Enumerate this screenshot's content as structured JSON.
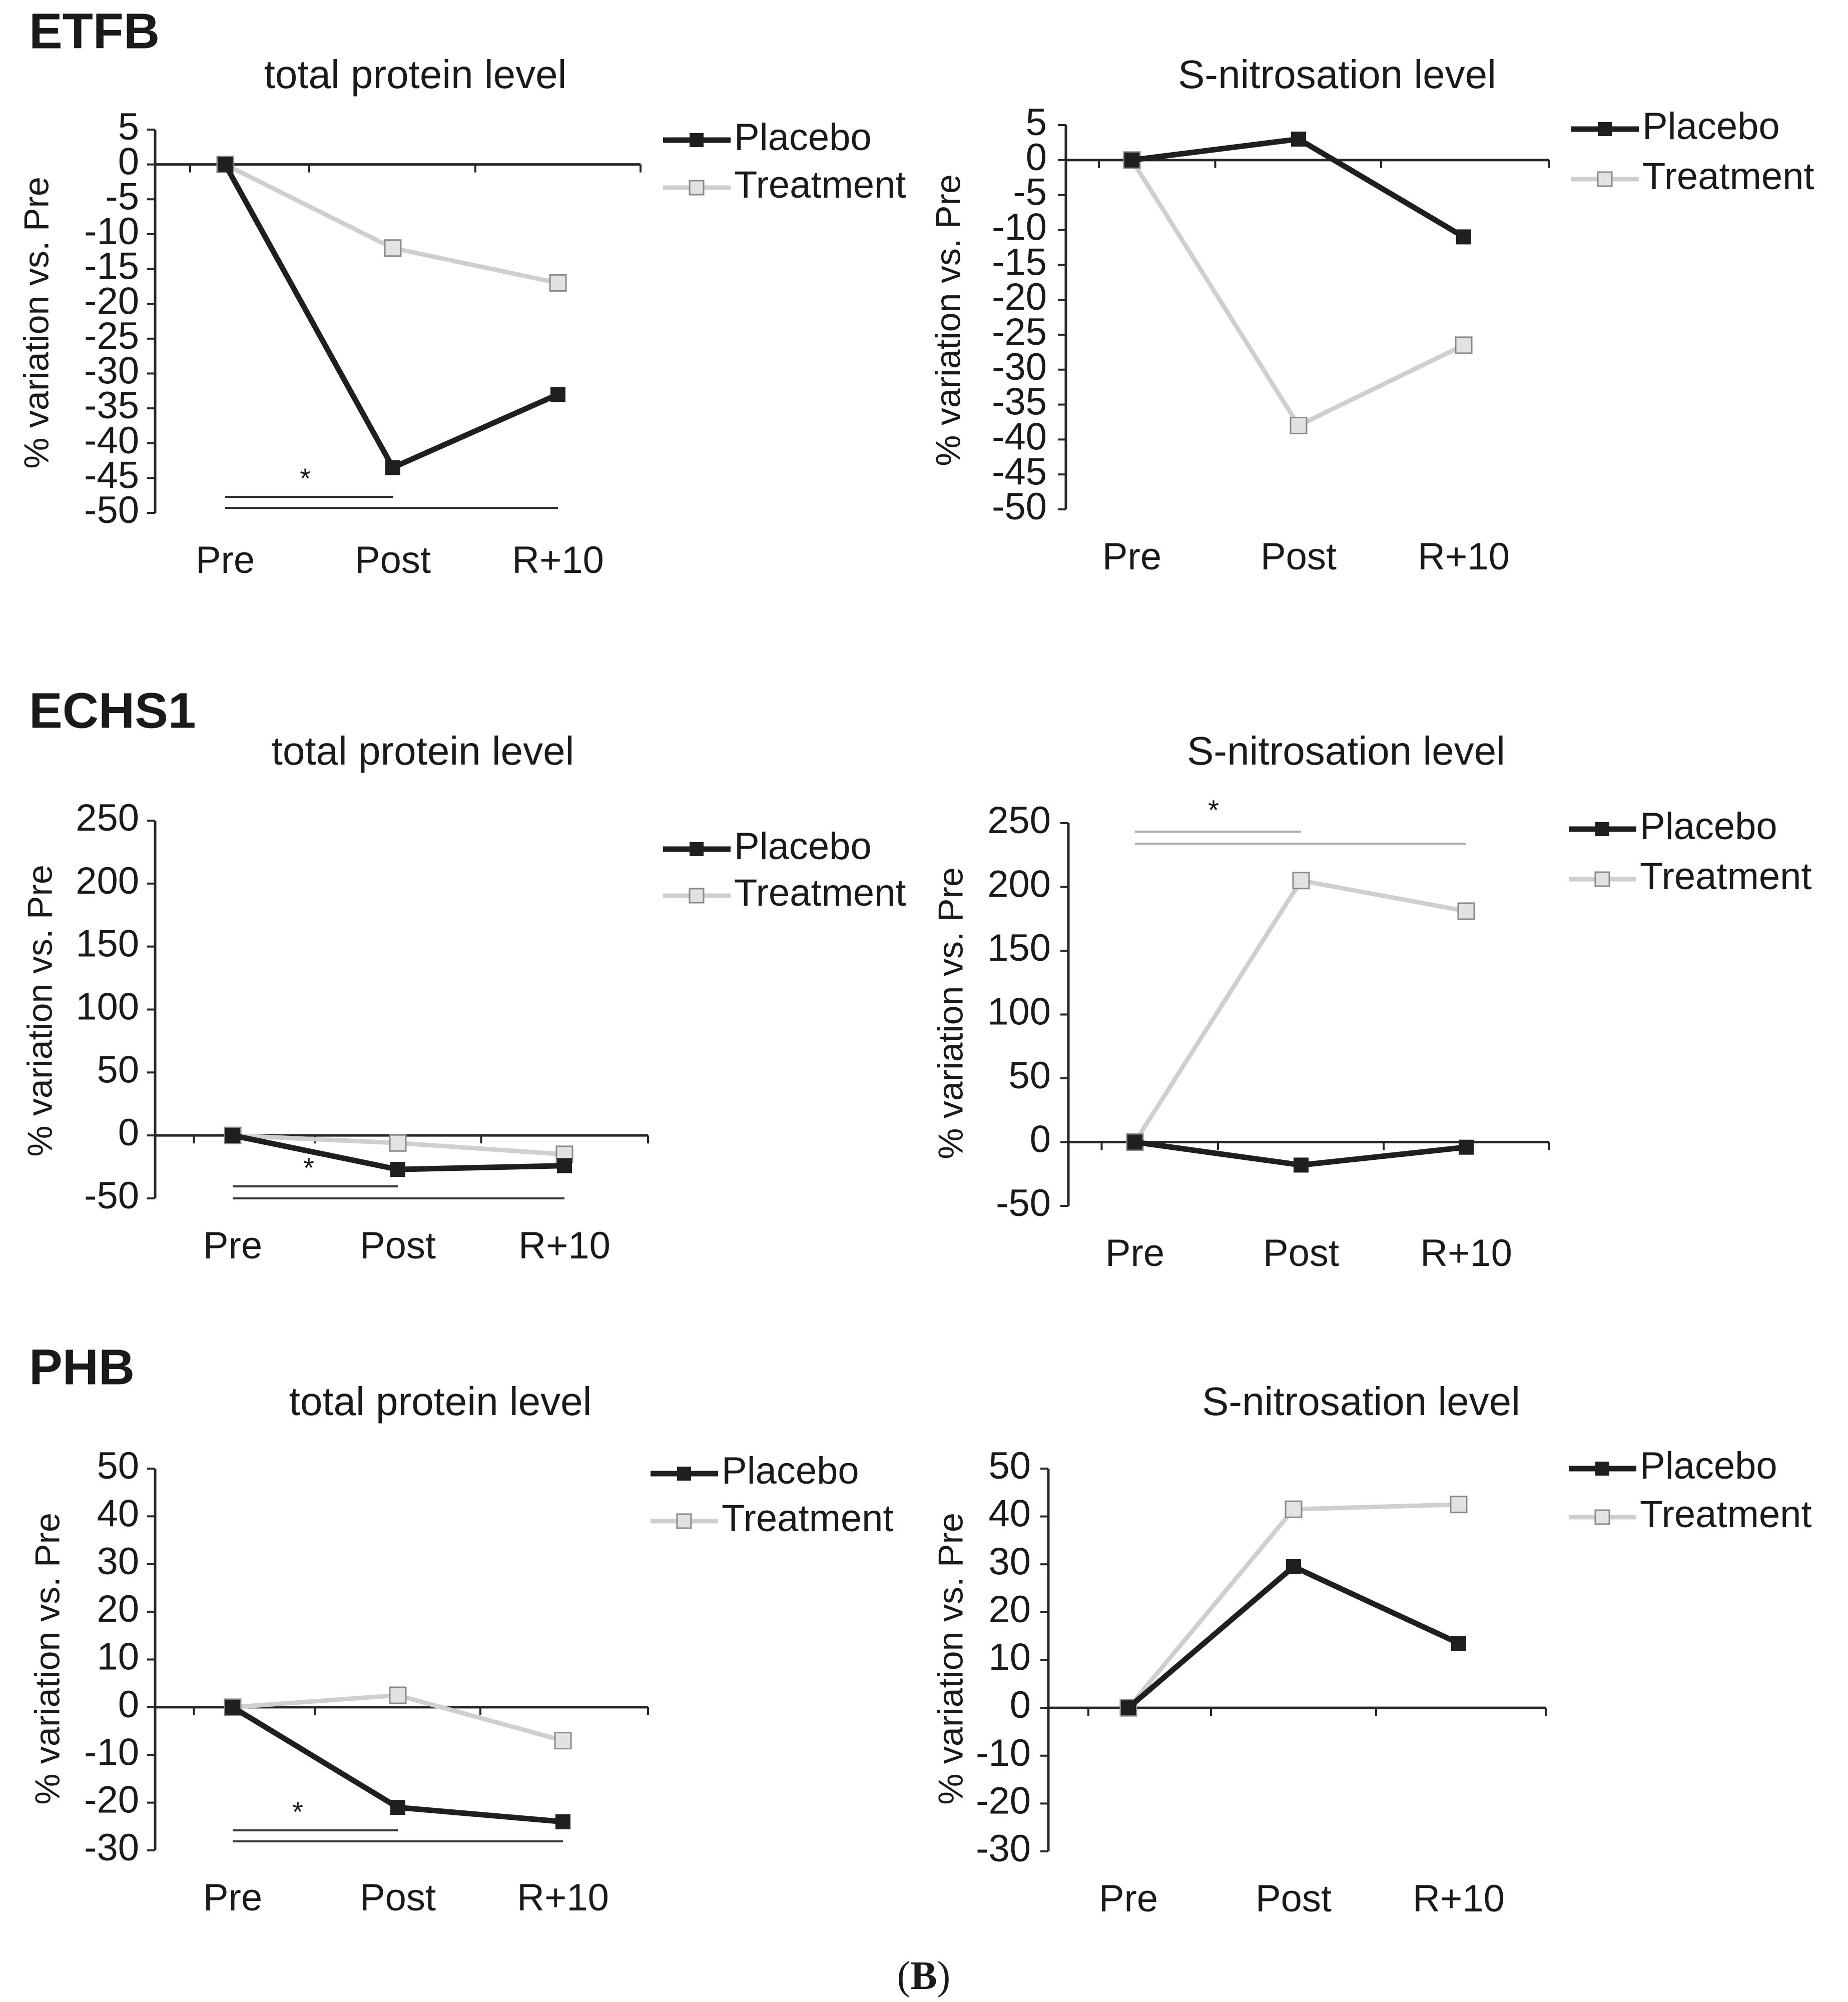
{
  "figure": {
    "caption_open": "(",
    "caption_letter": "B",
    "caption_close": ")"
  },
  "colors": {
    "placebo": "#1f1f1f",
    "treatment": "#cfcfcf",
    "treatment_marker_fill": "#e2e2e2",
    "axis": "#262626",
    "significance_line_dark": "#333333",
    "significance_line_light": "#aaaaaa"
  },
  "legend": {
    "placebo": "Placebo",
    "treatment": "Treatment"
  },
  "chart_data": [
    {
      "id": "etfb-total",
      "protein": "ETFB",
      "type": "line",
      "title": "total protein level",
      "ylabel": "% variation vs. Pre",
      "xlabel": "",
      "categories": [
        "Pre",
        "Post",
        "R+10"
      ],
      "ylim": [
        -50,
        5
      ],
      "yticks": [
        5,
        0,
        -5,
        -10,
        -15,
        -20,
        -25,
        -30,
        -35,
        -40,
        -45,
        -50
      ],
      "series": [
        {
          "name": "Placebo",
          "values": [
            0,
            -43.5,
            -33
          ]
        },
        {
          "name": "Treatment",
          "values": [
            0,
            -12,
            -17
          ]
        }
      ],
      "significance": {
        "label": "*",
        "color": "dark",
        "spans": [
          [
            0,
            1
          ],
          [
            0,
            2
          ]
        ]
      }
    },
    {
      "id": "etfb-snitro",
      "protein": "",
      "type": "line",
      "title": "S-nitrosation level",
      "ylabel": "% variation vs. Pre",
      "xlabel": "",
      "categories": [
        "Pre",
        "Post",
        "R+10"
      ],
      "ylim": [
        -50,
        5
      ],
      "yticks": [
        5,
        0,
        -5,
        -10,
        -15,
        -20,
        -25,
        -30,
        -35,
        -40,
        -45,
        -50
      ],
      "series": [
        {
          "name": "Placebo",
          "values": [
            0,
            3,
            -11
          ]
        },
        {
          "name": "Treatment",
          "values": [
            0,
            -38,
            -26.5
          ]
        }
      ],
      "significance": null
    },
    {
      "id": "echs1-total",
      "protein": "ECHS1",
      "type": "line",
      "title": "total protein level",
      "ylabel": "% variation vs. Pre",
      "xlabel": "",
      "categories": [
        "Pre",
        "Post",
        "R+10"
      ],
      "ylim": [
        -50,
        250
      ],
      "yticks": [
        250,
        200,
        150,
        100,
        50,
        0,
        -50
      ],
      "series": [
        {
          "name": "Placebo",
          "values": [
            0,
            -27,
            -24
          ]
        },
        {
          "name": "Treatment",
          "values": [
            0,
            -6,
            -15
          ]
        }
      ],
      "significance": {
        "label": "*",
        "color": "dark",
        "spans": [
          [
            0,
            1
          ],
          [
            0,
            2
          ]
        ]
      }
    },
    {
      "id": "echs1-snitro",
      "protein": "",
      "type": "line",
      "title": "S-nitrosation level",
      "ylabel": "% variation vs. Pre",
      "xlabel": "",
      "categories": [
        "Pre",
        "Post",
        "R+10"
      ],
      "ylim": [
        -50,
        250
      ],
      "yticks": [
        250,
        200,
        150,
        100,
        50,
        0,
        -50
      ],
      "series": [
        {
          "name": "Placebo",
          "values": [
            0,
            -18,
            -4
          ]
        },
        {
          "name": "Treatment",
          "values": [
            0,
            205,
            181
          ]
        }
      ],
      "significance": {
        "label": "*",
        "color": "light",
        "placement": "top",
        "spans": [
          [
            0,
            1
          ],
          [
            0,
            2
          ]
        ]
      }
    },
    {
      "id": "phb-total",
      "protein": "PHB",
      "type": "line",
      "title": "total protein level",
      "ylabel": "% variation vs. Pre",
      "xlabel": "",
      "categories": [
        "Pre",
        "Post",
        "R+10"
      ],
      "ylim": [
        -30,
        50
      ],
      "yticks": [
        50,
        40,
        30,
        20,
        10,
        0,
        -10,
        -20,
        -30
      ],
      "series": [
        {
          "name": "Placebo",
          "values": [
            0,
            -21,
            -24
          ]
        },
        {
          "name": "Treatment",
          "values": [
            0,
            2.5,
            -7
          ]
        }
      ],
      "significance": {
        "label": "*",
        "color": "dark",
        "spans": [
          [
            0,
            1
          ],
          [
            0,
            2
          ]
        ]
      }
    },
    {
      "id": "phb-snitro",
      "protein": "",
      "type": "line",
      "title": "S-nitrosation level",
      "ylabel": "% variation vs. Pre",
      "xlabel": "",
      "categories": [
        "Pre",
        "Post",
        "R+10"
      ],
      "ylim": [
        -30,
        50
      ],
      "yticks": [
        50,
        40,
        30,
        20,
        10,
        0,
        -10,
        -20,
        -30
      ],
      "series": [
        {
          "name": "Placebo",
          "values": [
            0,
            29.5,
            13.5
          ]
        },
        {
          "name": "Treatment",
          "values": [
            0,
            41.5,
            42.5
          ]
        }
      ],
      "significance": null
    }
  ]
}
